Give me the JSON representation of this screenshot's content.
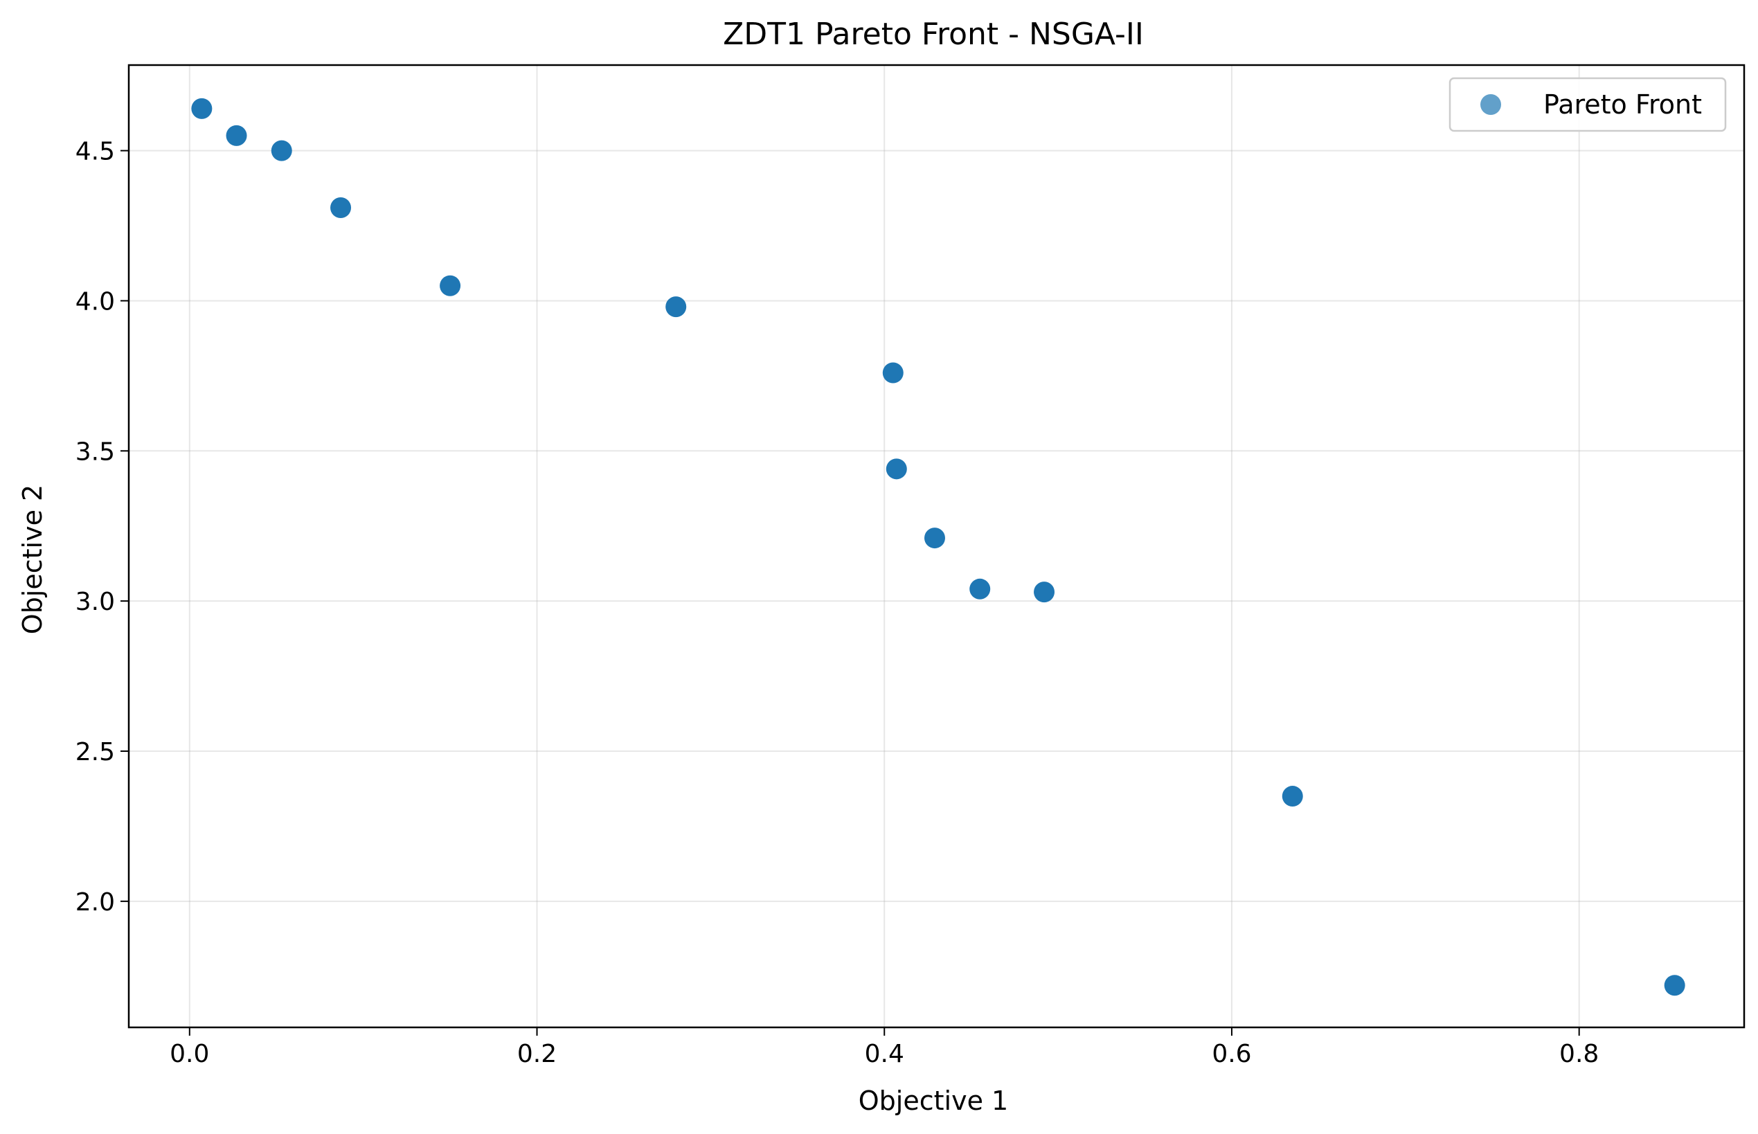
{
  "chart_data": {
    "type": "scatter",
    "title": "ZDT1 Pareto Front - NSGA-II",
    "xlabel": "Objective 1",
    "ylabel": "Objective 2",
    "xlim": [
      -0.035,
      0.895
    ],
    "ylim": [
      1.58,
      4.785
    ],
    "xticks": [
      0.0,
      0.2,
      0.4,
      0.6,
      0.8
    ],
    "xtick_labels": [
      "0.0",
      "0.2",
      "0.4",
      "0.6",
      "0.8"
    ],
    "yticks": [
      2.0,
      2.5,
      3.0,
      3.5,
      4.0,
      4.5
    ],
    "ytick_labels": [
      "2.0",
      "2.5",
      "3.0",
      "3.5",
      "4.0",
      "4.5"
    ],
    "grid": true,
    "legend_position": "top-right",
    "color": "#1f77b4",
    "series": [
      {
        "name": "Pareto Front",
        "x": [
          0.007,
          0.027,
          0.053,
          0.087,
          0.15,
          0.28,
          0.405,
          0.407,
          0.429,
          0.455,
          0.492,
          0.635,
          0.855
        ],
        "y": [
          4.64,
          4.55,
          4.5,
          4.31,
          4.05,
          3.98,
          3.76,
          3.44,
          3.21,
          3.04,
          3.03,
          2.35,
          1.72
        ]
      }
    ]
  }
}
